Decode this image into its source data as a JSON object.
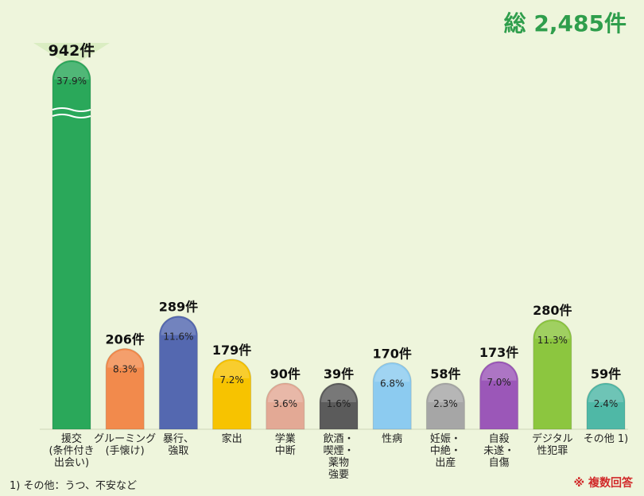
{
  "total_label": "総 2,485件",
  "footnote": "1) その他：うつ、不安など",
  "note_multi": "※ 複数回答",
  "colors": {
    "background": "#eef5dc",
    "total": "#2f9e4c",
    "note": "#d12a2a"
  },
  "chart_data": {
    "type": "bar",
    "title": "",
    "xlabel": "",
    "ylabel": "",
    "categories": [
      "援交\n(条件付き\n出会い)",
      "グルーミング\n(手懐け)",
      "暴行、\n強取",
      "家出",
      "学業\n中断",
      "飲酒・\n喫煙・\n薬物\n強要",
      "性病",
      "妊娠・\n中絶・\n出産",
      "自殺\n未遂・\n自傷",
      "デジタル\n性犯罪",
      "その他 1)"
    ],
    "values": [
      942,
      206,
      289,
      179,
      90,
      39,
      170,
      58,
      173,
      280,
      59
    ],
    "value_labels": [
      "942件",
      "206件",
      "289件",
      "179件",
      "90件",
      "39件",
      "170件",
      "58件",
      "173件",
      "280件",
      "59件"
    ],
    "percent_labels": [
      "37.9%",
      "8.3%",
      "11.6%",
      "7.2%",
      "3.6%",
      "1.6%",
      "6.8%",
      "2.3%",
      "7.0%",
      "11.3%",
      "2.4%"
    ],
    "bar_colors": [
      "#2aa85a",
      "#f28a4c",
      "#5468b0",
      "#f7c300",
      "#e3a995",
      "#5b5b5b",
      "#8ccbf0",
      "#a6a6a6",
      "#9b57b8",
      "#8cc63f",
      "#4fb8a6"
    ],
    "ylim": [
      0,
      942
    ],
    "grid": false,
    "legend": "none"
  }
}
